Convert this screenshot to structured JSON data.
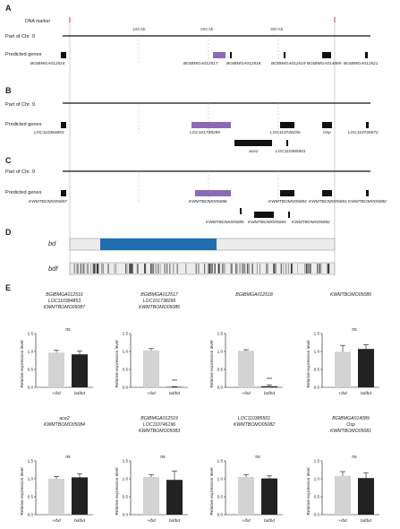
{
  "panels": {
    "A": "A",
    "B": "B",
    "C": "C",
    "D": "D",
    "E": "E"
  },
  "panel_a": {
    "marker_label": "DNA marker",
    "chr_label": "Part of Chr. 9",
    "genes_label": "Predicted genes",
    "kb_labels": [
      "100 kb",
      "200 kb",
      "300 kb"
    ],
    "genes": [
      "BGIBMGA012516",
      "BGIBMGA012517",
      "BGIBMGA012518",
      "BGIBMGA012519",
      "BGIBMGA014089",
      "BGIBMGA012521"
    ]
  },
  "panel_b": {
    "chr_label": "Part of Chr. 9",
    "genes_label": "Predicted genes",
    "genes": [
      "LOC110384853",
      "LOC101738295",
      "LOC110746196",
      "Osp",
      "LOC110746572",
      "ace2",
      "LOC110385501"
    ]
  },
  "panel_c": {
    "chr_label": "Part of Chr. 9",
    "genes_label": "Predicted genes",
    "genes": [
      "KWMTBOMO05087",
      "KWMTBOMO05086",
      "KWMTBOMO05083",
      "KWMTBOMO05081",
      "KWMTBOMO05080",
      "KWMTBOMO05085",
      "KWMTBOMO05084",
      "KWMTBOMO05082"
    ]
  },
  "panel_d": {
    "track_bd": "bd",
    "track_bdf": "bdf"
  },
  "colors": {
    "highlight_gene": "#8b6bb5",
    "deletion_bar": "#1f6fb0",
    "control_bar": "#d3d3d3",
    "mutant_bar": "#222222"
  },
  "chart_data": [
    {
      "type": "bar",
      "title": [
        "BGIBMGA012516",
        "LOC110384853",
        "KWMTBOMO05087"
      ],
      "ylabel": "Relative expression level",
      "categories": [
        "+/bd",
        "bd/bd"
      ],
      "values": [
        0.97,
        0.92
      ],
      "errors": [
        0.06,
        0.09
      ],
      "ylim": [
        0,
        1.5
      ],
      "significance": "ns"
    },
    {
      "type": "bar",
      "title": [
        "BGIBMGA012517",
        "LOC101738295",
        "KWMTBOMO05086"
      ],
      "ylabel": "Relative expression level",
      "categories": [
        "+/bd",
        "bd/bd"
      ],
      "values": [
        1.03,
        0.01
      ],
      "errors": [
        0.05,
        0.01
      ],
      "ylim": [
        0,
        1.5
      ],
      "significance": "***"
    },
    {
      "type": "bar",
      "title": [
        "BGIBMGA012518"
      ],
      "ylabel": "Relative expression level",
      "categories": [
        "+/bd",
        "bd/bd"
      ],
      "values": [
        1.02,
        0.03
      ],
      "errors": [
        0.03,
        0.04
      ],
      "ylim": [
        0,
        1.5
      ],
      "significance": "***"
    },
    {
      "type": "bar",
      "title": [
        "KWMTBOMO05085"
      ],
      "ylabel": "Relative expression level",
      "categories": [
        "+/bd",
        "bd/bd"
      ],
      "values": [
        0.99,
        1.07
      ],
      "errors": [
        0.18,
        0.12
      ],
      "ylim": [
        0,
        1.5
      ],
      "significance": "ns"
    },
    {
      "type": "bar",
      "title": [
        "ace2",
        "KWMTBOMO05084"
      ],
      "ylabel": "Relative expression level",
      "categories": [
        "+/bd",
        "bd/bd"
      ],
      "values": [
        1.0,
        1.04
      ],
      "errors": [
        0.06,
        0.1
      ],
      "ylim": [
        0,
        1.5
      ],
      "significance": "ns"
    },
    {
      "type": "bar",
      "title": [
        "BGIBMGA012519",
        "LOC110746196",
        "KWMTBOMO05083"
      ],
      "ylabel": "Relative expression level",
      "categories": [
        "+/bd",
        "bd/bd"
      ],
      "values": [
        1.05,
        0.97
      ],
      "errors": [
        0.06,
        0.25
      ],
      "ylim": [
        0,
        1.5
      ],
      "significance": "ns"
    },
    {
      "type": "bar",
      "title": [
        "LOC110385501",
        "KWMTBOMO05082"
      ],
      "ylabel": "Relative expression level",
      "categories": [
        "+/bd",
        "bd/bd"
      ],
      "values": [
        1.05,
        1.01
      ],
      "errors": [
        0.07,
        0.07
      ],
      "ylim": [
        0,
        1.5
      ],
      "significance": "ns"
    },
    {
      "type": "bar",
      "title": [
        "BGIBMGA014089",
        "Osp",
        "KWMTBOMO05081"
      ],
      "ylabel": "Relative expression level",
      "categories": [
        "+/bd",
        "bd/bd"
      ],
      "values": [
        1.08,
        1.02
      ],
      "errors": [
        0.12,
        0.15
      ],
      "ylim": [
        0,
        1.5
      ],
      "significance": "ns"
    }
  ]
}
